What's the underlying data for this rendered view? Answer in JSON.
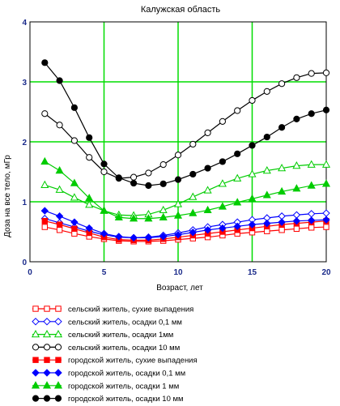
{
  "chart_data": {
    "type": "line",
    "title": "Калужская область",
    "xlabel": "Возраст, лет",
    "ylabel": "Доза на все тело, мГр",
    "xlim": [
      0,
      20
    ],
    "ylim": [
      0,
      4
    ],
    "xticks": [
      0,
      5,
      10,
      15,
      20
    ],
    "yticks": [
      0,
      1,
      2,
      3,
      4
    ],
    "grid": true,
    "grid_color": "#00dd00",
    "legend_position": "bottom",
    "x": [
      1,
      2,
      3,
      4,
      5,
      6,
      7,
      8,
      9,
      10,
      11,
      12,
      13,
      14,
      15,
      16,
      17,
      18,
      19,
      20
    ],
    "series": [
      {
        "name": "сельский житель, сухие выпадения",
        "color": "#ff0000",
        "marker": "square",
        "filled": false,
        "values": [
          0.58,
          0.53,
          0.47,
          0.42,
          0.38,
          0.35,
          0.34,
          0.34,
          0.35,
          0.37,
          0.39,
          0.41,
          0.44,
          0.47,
          0.49,
          0.51,
          0.53,
          0.55,
          0.57,
          0.58
        ]
      },
      {
        "name": "сельский житель, осадки 0,1 мм",
        "color": "#0000ff",
        "marker": "diamond",
        "filled": false,
        "values": [
          0.72,
          0.65,
          0.58,
          0.51,
          0.45,
          0.41,
          0.4,
          0.41,
          0.44,
          0.48,
          0.53,
          0.58,
          0.62,
          0.66,
          0.7,
          0.73,
          0.76,
          0.78,
          0.8,
          0.81
        ]
      },
      {
        "name": "сельский житель, осадки 1мм",
        "color": "#00cc00",
        "marker": "triangle",
        "filled": false,
        "values": [
          1.28,
          1.2,
          1.07,
          0.95,
          0.85,
          0.78,
          0.77,
          0.79,
          0.86,
          0.96,
          1.08,
          1.19,
          1.3,
          1.39,
          1.46,
          1.52,
          1.56,
          1.6,
          1.62,
          1.62
        ]
      },
      {
        "name": "сельский житель, осадки 10 мм",
        "color": "#000000",
        "marker": "circle",
        "filled": false,
        "values": [
          2.47,
          2.28,
          2.02,
          1.74,
          1.5,
          1.39,
          1.41,
          1.48,
          1.62,
          1.78,
          1.96,
          2.15,
          2.34,
          2.52,
          2.69,
          2.84,
          2.97,
          3.07,
          3.14,
          3.15
        ]
      },
      {
        "name": "городской житель, сухие выпадения",
        "color": "#ff0000",
        "marker": "square",
        "filled": true,
        "values": [
          0.68,
          0.62,
          0.55,
          0.48,
          0.41,
          0.37,
          0.36,
          0.36,
          0.38,
          0.41,
          0.44,
          0.47,
          0.5,
          0.53,
          0.56,
          0.59,
          0.62,
          0.64,
          0.66,
          0.68
        ]
      },
      {
        "name": "городской житель, осадки 0,1 мм",
        "color": "#0000ff",
        "marker": "diamond",
        "filled": true,
        "values": [
          0.85,
          0.76,
          0.66,
          0.56,
          0.47,
          0.42,
          0.4,
          0.4,
          0.42,
          0.45,
          0.49,
          0.53,
          0.56,
          0.59,
          0.62,
          0.64,
          0.66,
          0.68,
          0.69,
          0.7
        ]
      },
      {
        "name": "городской житель, осадки 1 мм",
        "color": "#00cc00",
        "marker": "triangle",
        "filled": true,
        "values": [
          1.67,
          1.52,
          1.31,
          1.06,
          0.85,
          0.74,
          0.72,
          0.72,
          0.74,
          0.77,
          0.81,
          0.86,
          0.92,
          0.99,
          1.05,
          1.11,
          1.17,
          1.22,
          1.27,
          1.3
        ]
      },
      {
        "name": "городской житель, осадки 10 мм",
        "color": "#000000",
        "marker": "circle",
        "filled": true,
        "values": [
          3.32,
          3.02,
          2.57,
          2.07,
          1.63,
          1.4,
          1.31,
          1.27,
          1.3,
          1.37,
          1.46,
          1.56,
          1.67,
          1.8,
          1.94,
          2.08,
          2.24,
          2.38,
          2.47,
          2.53
        ]
      }
    ]
  }
}
